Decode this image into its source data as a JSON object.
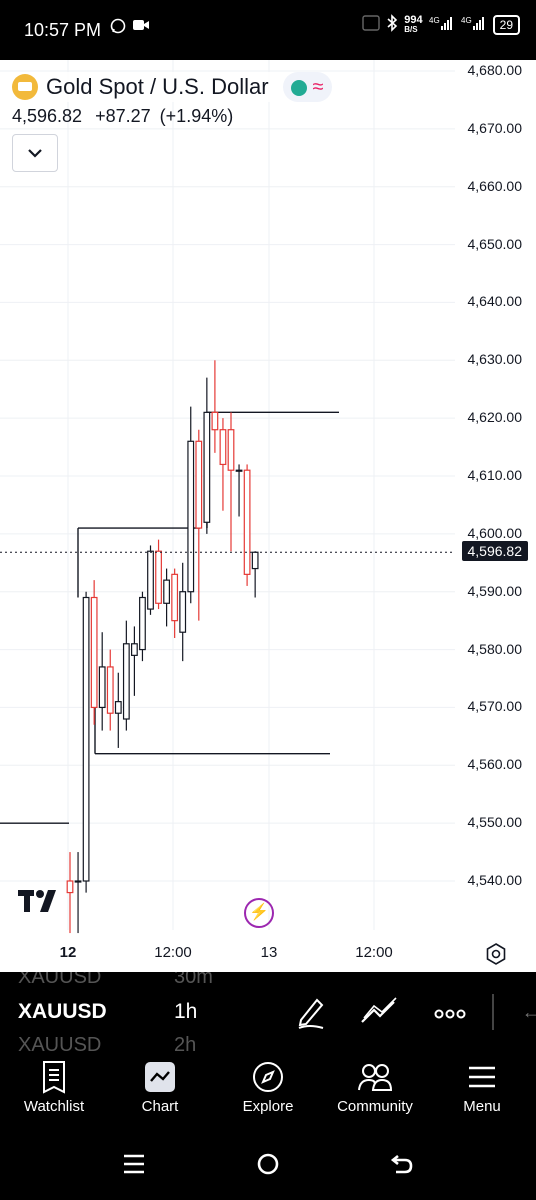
{
  "status": {
    "time": "10:57 PM",
    "net_speed": "994",
    "net_unit": "B/S",
    "battery": "29"
  },
  "header": {
    "title": "Gold Spot / U.S. Dollar",
    "price": "4,596.82",
    "change": "+87.27",
    "change_pct": "(+1.94%)"
  },
  "price_axis": [
    "4,680.00",
    "4,670.00",
    "4,660.00",
    "4,650.00",
    "4,640.00",
    "4,630.00",
    "4,620.00",
    "4,610.00",
    "4,600.00",
    "4,590.00",
    "4,580.00",
    "4,570.00",
    "4,560.00",
    "4,550.00",
    "4,540.00"
  ],
  "current_price_label": "4,596.82",
  "time_axis": [
    "12",
    "12:00",
    "13",
    "12:00"
  ],
  "symbol_bar": {
    "symbol": "XAUUSD",
    "ghost_above_symbol": "XAUUSD",
    "ghost_above_tf": "30m",
    "interval": "1h",
    "ghost_below_symbol": "XAUUSD",
    "ghost_below_tf": "2h"
  },
  "nav": {
    "watchlist": "Watchlist",
    "chart": "Chart",
    "explore": "Explore",
    "community": "Community",
    "menu": "Menu"
  },
  "colors": {
    "up": "#131722",
    "down": "#e53935",
    "accent": "#2962ff"
  },
  "chart_data": {
    "type": "candlestick",
    "symbol": "XAUUSD",
    "interval": "1h",
    "ylim": [
      4535,
      4685
    ],
    "y_ticks": [
      4540,
      4550,
      4560,
      4570,
      4580,
      4590,
      4600,
      4610,
      4620,
      4630,
      4640,
      4650,
      4660,
      4670,
      4680
    ],
    "last_price": 4596.82,
    "candles": [
      {
        "o": 4540,
        "h": 4545,
        "l": 4531,
        "c": 4538
      },
      {
        "o": 4540,
        "h": 4545,
        "l": 4531,
        "c": 4540
      },
      {
        "o": 4540,
        "h": 4590,
        "l": 4538,
        "c": 4589
      },
      {
        "o": 4589,
        "h": 4592,
        "l": 4567,
        "c": 4570
      },
      {
        "o": 4570,
        "h": 4583,
        "l": 4566,
        "c": 4577
      },
      {
        "o": 4577,
        "h": 4580,
        "l": 4566,
        "c": 4569
      },
      {
        "o": 4569,
        "h": 4576,
        "l": 4563,
        "c": 4571
      },
      {
        "o": 4568,
        "h": 4585,
        "l": 4566,
        "c": 4581
      },
      {
        "o": 4579,
        "h": 4584,
        "l": 4572,
        "c": 4581
      },
      {
        "o": 4580,
        "h": 4590,
        "l": 4578,
        "c": 4589
      },
      {
        "o": 4587,
        "h": 4598,
        "l": 4586,
        "c": 4597
      },
      {
        "o": 4597,
        "h": 4599,
        "l": 4587,
        "c": 4588
      },
      {
        "o": 4588,
        "h": 4594,
        "l": 4584,
        "c": 4592
      },
      {
        "o": 4593,
        "h": 4594,
        "l": 4582,
        "c": 4585
      },
      {
        "o": 4583,
        "h": 4595,
        "l": 4578,
        "c": 4590
      },
      {
        "o": 4590,
        "h": 4622,
        "l": 4588,
        "c": 4616
      },
      {
        "o": 4616,
        "h": 4618,
        "l": 4585,
        "c": 4601
      },
      {
        "o": 4602,
        "h": 4627,
        "l": 4600,
        "c": 4621
      },
      {
        "o": 4621,
        "h": 4630,
        "l": 4614,
        "c": 4618
      },
      {
        "o": 4618,
        "h": 4620,
        "l": 4604,
        "c": 4612
      },
      {
        "o": 4618,
        "h": 4621,
        "l": 4597,
        "c": 4611
      },
      {
        "o": 4611,
        "h": 4612,
        "l": 4603,
        "c": 4611
      },
      {
        "o": 4611,
        "h": 4612,
        "l": 4591,
        "c": 4593
      },
      {
        "o": 4594,
        "h": 4597,
        "l": 4589,
        "c": 4596.82
      }
    ],
    "level_lines": [
      {
        "price": 4550
      },
      {
        "price": 4601
      },
      {
        "price": 4621
      },
      {
        "price": 4562
      }
    ]
  }
}
